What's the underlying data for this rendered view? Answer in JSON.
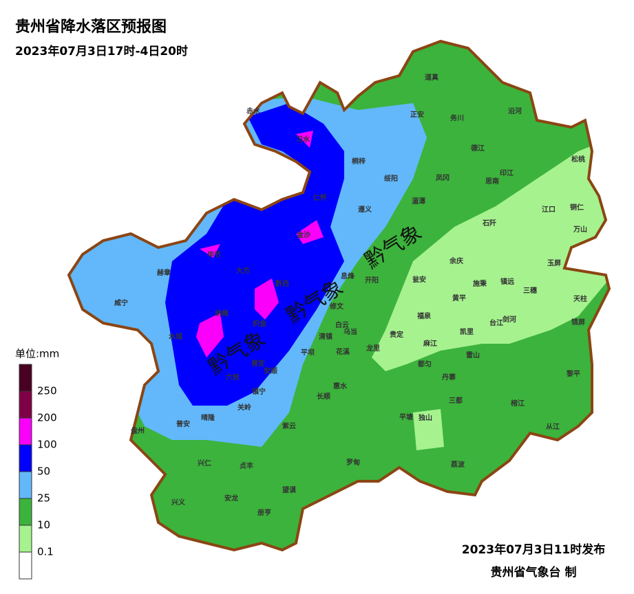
{
  "title": "贵州省降水落区预报图",
  "subtitle": "2023年07月3日17时-4日20时",
  "legend": {
    "unit": "单位:mm",
    "labels": [
      "0.1",
      "10",
      "25",
      "50",
      "100",
      "200",
      "250"
    ],
    "colors": [
      "#ffffff",
      "#a6f28f",
      "#3cb33c",
      "#62b8fb",
      "#0000fe",
      "#fa00fa",
      "#800045",
      "#4a0022"
    ]
  },
  "watermarks": [
    "黔气象",
    "黔气象",
    "黔气象"
  ],
  "counties": [
    "道真",
    "务川",
    "沿河",
    "正安",
    "赤水",
    "习水",
    "桐梓",
    "绥阳",
    "凤冈",
    "德江",
    "印江",
    "松桃",
    "思南",
    "江口",
    "铜仁",
    "万山",
    "石阡",
    "湄潭",
    "仁怀",
    "遵义",
    "金沙",
    "毕节",
    "大方",
    "黔西",
    "息烽",
    "开阳",
    "余庆",
    "施秉",
    "镇远",
    "玉屏",
    "三穗",
    "天柱",
    "瓮安",
    "黄平",
    "赫章",
    "威宁",
    "纳雍",
    "织金",
    "修文",
    "白云",
    "乌当",
    "清镇",
    "福泉",
    "台江",
    "剑河",
    "锦屏",
    "凯里",
    "贵定",
    "麻江",
    "雷山",
    "水城",
    "龙里",
    "花溪",
    "平坝",
    "普定",
    "安顺",
    "六枝",
    "都匀",
    "丹寨",
    "黎平",
    "惠水",
    "镇宁",
    "长顺",
    "关岭",
    "三都",
    "榕江",
    "普安",
    "晴隆",
    "平塘",
    "独山",
    "从江",
    "盘州",
    "紫云",
    "罗甸",
    "荔波",
    "兴仁",
    "贞丰",
    "望谟",
    "兴义",
    "安龙",
    "册亨"
  ],
  "issued": "2023年07月3日11时发布",
  "issuer": "贵州省气象台 制"
}
